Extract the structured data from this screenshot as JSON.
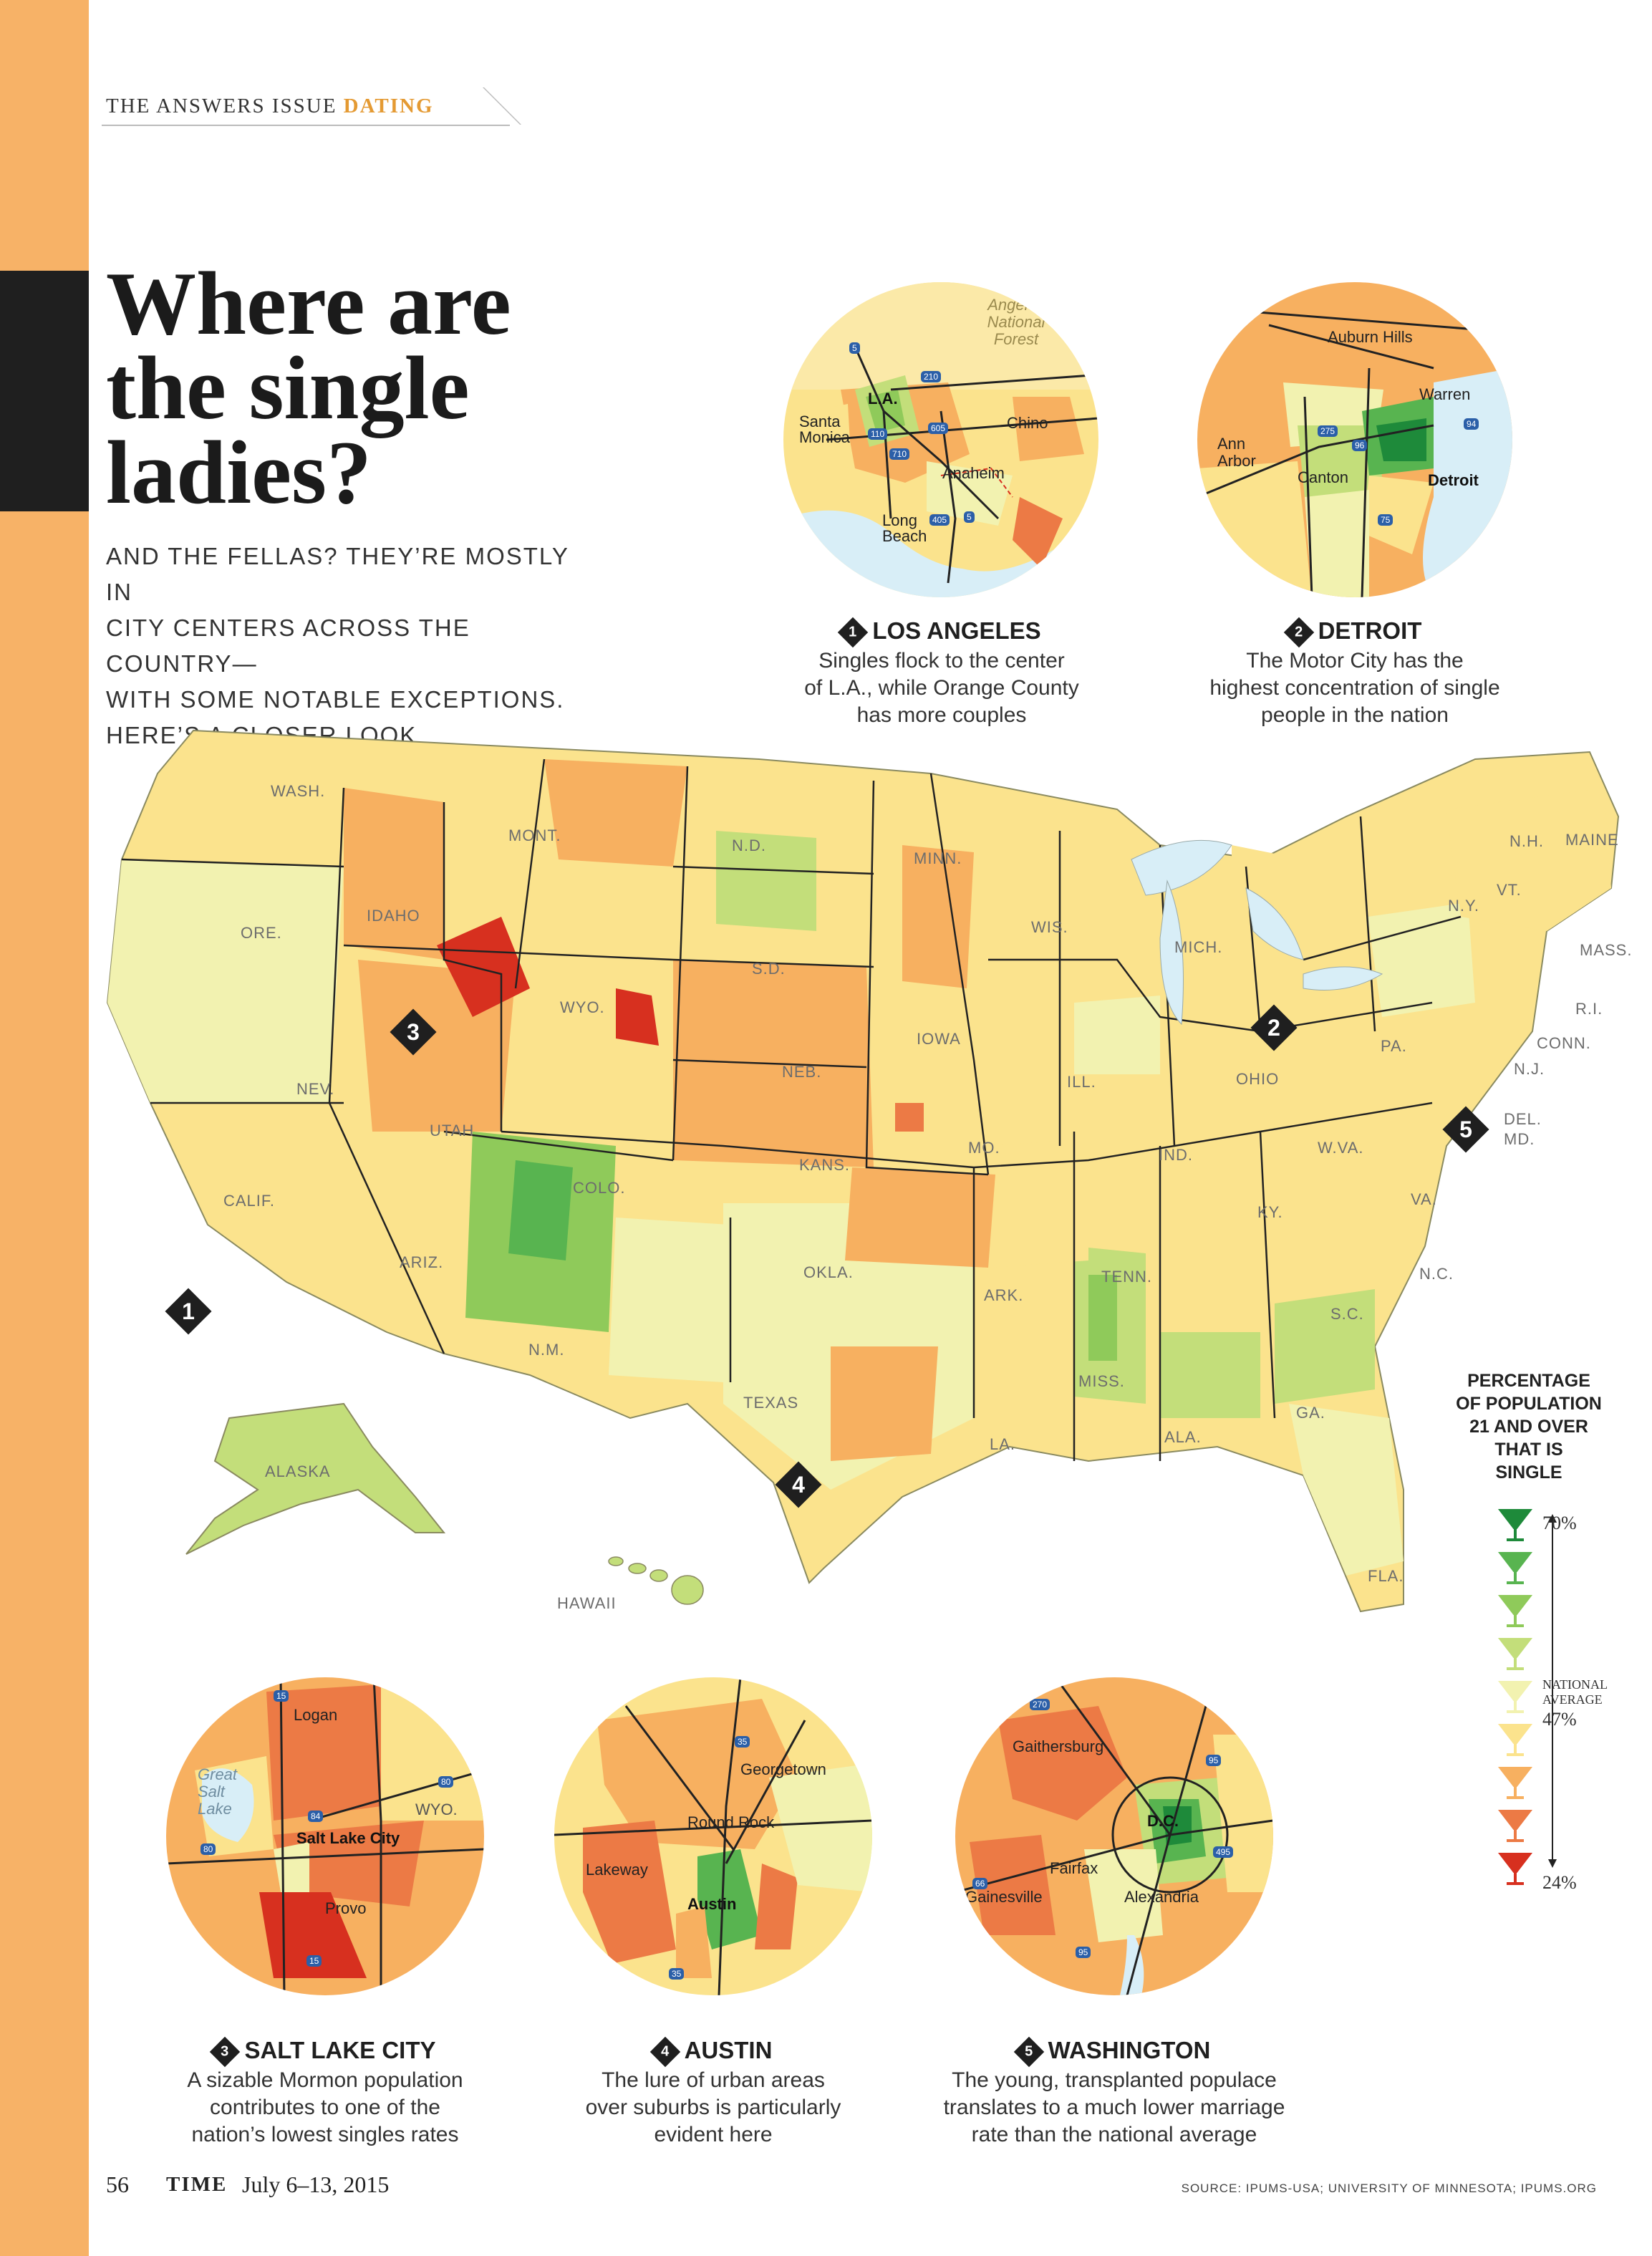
{
  "kicker": {
    "issue": "THE ANSWERS ISSUE",
    "topic": "DATING"
  },
  "headline": {
    "line1": "Where are",
    "line2": "the single",
    "line3": "ladies?"
  },
  "dek": {
    "line1": "AND THE FELLAS? THEY’RE MOSTLY IN",
    "line2": "CITY CENTERS ACROSS THE COUNTRY—",
    "line3": "WITH SOME NOTABLE EXCEPTIONS.",
    "line4": "HERE’S A CLOSER LOOK"
  },
  "insets": {
    "la": {
      "num": "1",
      "title": "LOS ANGELES",
      "l1": "Singles flock to the center",
      "l2": "of L.A., while Orange County",
      "l3": "has more couples",
      "labels": {
        "forest": "Angeles",
        "forest2": "National",
        "forest3": "Forest",
        "la": "L.A.",
        "santa": "Santa",
        "monica": "Monica",
        "chino": "Chino",
        "anaheim": "Anaheim",
        "long": "Long",
        "beach": "Beach"
      },
      "shields": {
        "s5": "5",
        "s210": "210",
        "s110": "110",
        "s605": "605",
        "s710": "710",
        "s405": "405",
        "s5b": "5"
      }
    },
    "detroit": {
      "num": "2",
      "title": "DETROIT",
      "l1": "The Motor City has the",
      "l2": "highest concentration of single",
      "l3": "people in the nation",
      "labels": {
        "auburn": "Auburn Hills",
        "warren": "Warren",
        "ann": "Ann",
        "arbor": "Arbor",
        "canton": "Canton",
        "detroit": "Detroit"
      },
      "shields": {
        "s275": "275",
        "s96": "96",
        "s94": "94",
        "s75": "75"
      }
    },
    "slc": {
      "num": "3",
      "title": "SALT LAKE CITY",
      "l1": "A sizable Mormon population",
      "l2": "contributes to one of the",
      "l3": "nation’s lowest singles rates",
      "labels": {
        "logan": "Logan",
        "great": "Great",
        "salt": "Salt",
        "lake": "Lake",
        "slc": "Salt Lake City",
        "provo": "Provo",
        "wyo": "WYO."
      },
      "shields": {
        "s15": "15",
        "s84": "84",
        "s80": "80",
        "s80b": "80",
        "s15b": "15"
      }
    },
    "austin": {
      "num": "4",
      "title": "AUSTIN",
      "l1": "The lure of urban areas",
      "l2": "over suburbs is particularly",
      "l3": "evident here",
      "labels": {
        "georgetown": "Georgetown",
        "roundrock": "Round Rock",
        "lakeway": "Lakeway",
        "austin": "Austin"
      },
      "shields": {
        "s35": "35",
        "s35b": "35"
      }
    },
    "dc": {
      "num": "5",
      "title": "WASHINGTON",
      "l1": "The young, transplanted populace",
      "l2": "translates to a much lower marriage",
      "l3": "rate than the national average",
      "labels": {
        "gaithersburg": "Gaithersburg",
        "dc": "D.C.",
        "fairfax": "Fairfax",
        "gainesville": "Gainesville",
        "alexandria": "Alexandria"
      },
      "shields": {
        "s270": "270",
        "s95": "95",
        "s66": "66",
        "s495": "495",
        "s95b": "95"
      }
    }
  },
  "map_markers": {
    "m1": "1",
    "m2": "2",
    "m3": "3",
    "m4": "4",
    "m5": "5"
  },
  "states": {
    "wash": "WASH.",
    "ore": "ORE.",
    "calif": "CALIF.",
    "idaho": "IDAHO",
    "nev": "NEV.",
    "mont": "MONT.",
    "wyo": "WYO.",
    "utah": "UTAH",
    "ariz": "ARIZ.",
    "colo": "COLO.",
    "nm": "N.M.",
    "nd": "N.D.",
    "sd": "S.D.",
    "neb": "NEB.",
    "kans": "KANS.",
    "okla": "OKLA.",
    "texas": "TEXAS",
    "minn": "MINN.",
    "iowa": "IOWA",
    "mo": "MO.",
    "ark": "ARK.",
    "la": "LA.",
    "wis": "WIS.",
    "ill": "ILL.",
    "mich": "MICH.",
    "ind": "IND.",
    "ohio": "OHIO",
    "ky": "KY.",
    "tenn": "TENN.",
    "miss": "MISS.",
    "ala": "ALA.",
    "ga": "GA.",
    "fla": "FLA.",
    "sc": "S.C.",
    "nc": "N.C.",
    "va": "VA.",
    "wva": "W.VA.",
    "pa": "PA.",
    "ny": "N.Y.",
    "vt": "VT.",
    "nh": "N.H.",
    "maine": "MAINE",
    "mass": "MASS.",
    "ri": "R.I.",
    "conn": "CONN.",
    "nj": "N.J.",
    "del": "DEL.",
    "md": "MD.",
    "alaska": "ALASKA",
    "hawaii": "HAWAII"
  },
  "legend": {
    "t1": "PERCENTAGE",
    "t2": "OF POPULATION",
    "t3": "21 AND OVER",
    "t4": "THAT IS",
    "t5": "SINGLE",
    "max": "70%",
    "mid": "47%",
    "min": "24%",
    "note1": "NATIONAL",
    "note2": "AVERAGE",
    "scale_max": 70,
    "scale_mid": 47,
    "scale_min": 24,
    "colors": [
      "#1e8a3a",
      "#58b450",
      "#8fca5a",
      "#c3de7a",
      "#f2f2b0",
      "#fbe38d",
      "#f7b060",
      "#ec7a45",
      "#d7301f"
    ]
  },
  "footer": {
    "page": "56",
    "mag": "TIME",
    "date": "July 6–13, 2015",
    "source": "SOURCE: IPUMS-USA; UNIVERSITY OF MINNESOTA; IPUMS.ORG"
  }
}
